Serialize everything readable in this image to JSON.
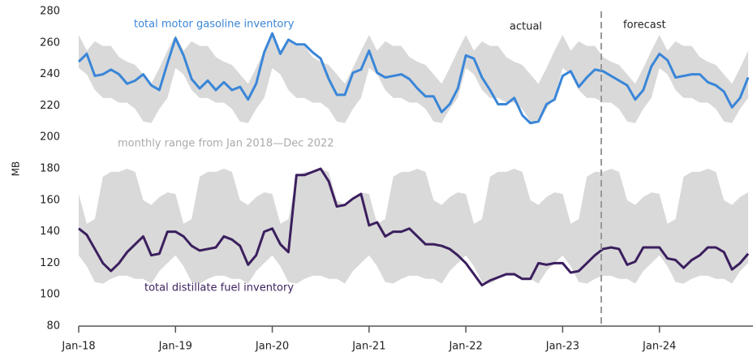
{
  "chart_data": {
    "type": "line",
    "y_label": "MB",
    "ylim": [
      80,
      280
    ],
    "yticks": [
      80,
      100,
      120,
      140,
      160,
      180,
      200,
      220,
      240,
      260,
      280
    ],
    "categories": [
      "Jan-18",
      null,
      null,
      null,
      null,
      null,
      null,
      null,
      null,
      null,
      null,
      null,
      "Jan-19",
      null,
      null,
      null,
      null,
      null,
      null,
      null,
      null,
      null,
      null,
      null,
      "Jan-20",
      null,
      null,
      null,
      null,
      null,
      null,
      null,
      null,
      null,
      null,
      null,
      "Jan-21",
      null,
      null,
      null,
      null,
      null,
      null,
      null,
      null,
      null,
      null,
      null,
      "Jan-22",
      null,
      null,
      null,
      null,
      null,
      null,
      null,
      null,
      null,
      null,
      null,
      "Jan-23",
      null,
      null,
      null,
      null,
      null,
      null,
      null,
      null,
      null,
      null,
      null,
      "Jan-24",
      null,
      null,
      null,
      null,
      null,
      null,
      null,
      null,
      null,
      null,
      null
    ],
    "series": [
      {
        "name": "total motor gasoline inventory",
        "color": "#3a86d8",
        "values": [
          248,
          253,
          239,
          240,
          243,
          240,
          234,
          236,
          240,
          233,
          230,
          247,
          263,
          252,
          237,
          231,
          236,
          230,
          235,
          230,
          232,
          224,
          234,
          254,
          266,
          253,
          262,
          259,
          259,
          254,
          250,
          237,
          227,
          227,
          241,
          243,
          255,
          241,
          238,
          239,
          240,
          237,
          231,
          226,
          226,
          216,
          221,
          231,
          252,
          250,
          238,
          230,
          221,
          221,
          225,
          214,
          209,
          210,
          221,
          224,
          239,
          242,
          232,
          238,
          243,
          242,
          239,
          236,
          233,
          224,
          230,
          245,
          253,
          249,
          238,
          239,
          240,
          240,
          235,
          233,
          229,
          219,
          225,
          238
        ]
      },
      {
        "name": "total distillate fuel inventory",
        "color": "#3b1f5e",
        "values": [
          142,
          138,
          129,
          120,
          115,
          120,
          127,
          132,
          137,
          125,
          126,
          140,
          140,
          137,
          131,
          128,
          129,
          130,
          137,
          135,
          131,
          119,
          125,
          140,
          142,
          132,
          127,
          176,
          176,
          178,
          180,
          172,
          156,
          157,
          161,
          164,
          144,
          146,
          137,
          140,
          140,
          142,
          137,
          132,
          132,
          131,
          129,
          125,
          120,
          113,
          106,
          109,
          111,
          113,
          113,
          110,
          110,
          120,
          119,
          120,
          120,
          114,
          115,
          120,
          125,
          129,
          130,
          129,
          119,
          121,
          130,
          130,
          130,
          123,
          122,
          117,
          122,
          125,
          130,
          130,
          127,
          116,
          120,
          126
        ]
      }
    ],
    "bands": [
      {
        "color": "#d9d9d9",
        "high": [
          265,
          255,
          261,
          258,
          258,
          251,
          248,
          246,
          240,
          234,
          244,
          255,
          265,
          255,
          261,
          258,
          258,
          251,
          248,
          246,
          240,
          234,
          244,
          255,
          265,
          255,
          261,
          258,
          258,
          251,
          248,
          246,
          240,
          234,
          244,
          255,
          265,
          255,
          261,
          258,
          258,
          251,
          248,
          246,
          240,
          234,
          244,
          255,
          265,
          255,
          261,
          258,
          258,
          251,
          248,
          246,
          240,
          234,
          244,
          255,
          265,
          255,
          261,
          258,
          258,
          251,
          248,
          246,
          240,
          234,
          244,
          255,
          265,
          255,
          261,
          258,
          258,
          251,
          248,
          246,
          240,
          234,
          244,
          255
        ],
        "low": [
          244,
          240,
          230,
          225,
          225,
          222,
          222,
          218,
          210,
          209,
          218,
          225,
          244,
          240,
          230,
          225,
          225,
          222,
          222,
          218,
          210,
          209,
          218,
          225,
          244,
          240,
          230,
          225,
          225,
          222,
          222,
          218,
          210,
          209,
          218,
          225,
          244,
          240,
          230,
          225,
          225,
          222,
          222,
          218,
          210,
          209,
          218,
          225,
          244,
          240,
          230,
          225,
          225,
          222,
          222,
          218,
          210,
          209,
          218,
          225,
          244,
          240,
          230,
          225,
          225,
          222,
          222,
          218,
          210,
          209,
          218,
          225,
          244,
          240,
          230,
          225,
          225,
          222,
          222,
          218,
          210,
          209,
          218,
          225
        ]
      },
      {
        "color": "#d9d9d9",
        "high": [
          164,
          145,
          148,
          175,
          178,
          178,
          180,
          178,
          160,
          157,
          162,
          165,
          164,
          145,
          148,
          175,
          178,
          178,
          180,
          178,
          160,
          157,
          162,
          165,
          164,
          145,
          148,
          175,
          178,
          178,
          180,
          178,
          160,
          157,
          162,
          165,
          164,
          145,
          148,
          175,
          178,
          178,
          180,
          178,
          160,
          157,
          162,
          165,
          164,
          145,
          148,
          175,
          178,
          178,
          180,
          178,
          160,
          157,
          162,
          165,
          164,
          145,
          148,
          175,
          178,
          178,
          180,
          178,
          160,
          157,
          162,
          165,
          164,
          145,
          148,
          175,
          178,
          178,
          180,
          178,
          160,
          157,
          162,
          165
        ],
        "low": [
          125,
          118,
          108,
          107,
          110,
          112,
          112,
          110,
          110,
          107,
          115,
          120,
          125,
          118,
          108,
          107,
          110,
          112,
          112,
          110,
          110,
          107,
          115,
          120,
          125,
          118,
          108,
          107,
          110,
          112,
          112,
          110,
          110,
          107,
          115,
          120,
          125,
          118,
          108,
          107,
          110,
          112,
          112,
          110,
          110,
          107,
          115,
          120,
          125,
          118,
          108,
          107,
          110,
          112,
          112,
          110,
          110,
          107,
          115,
          120,
          125,
          118,
          108,
          107,
          110,
          112,
          112,
          110,
          110,
          107,
          115,
          120,
          125,
          118,
          108,
          107,
          110,
          112,
          112,
          110,
          110,
          107,
          115,
          120
        ]
      }
    ],
    "annotations": [
      "total motor gasoline inventory",
      "monthly range from Jan 2018—Dec 2022",
      "total distillate fuel inventory",
      "actual",
      "forecast"
    ]
  }
}
